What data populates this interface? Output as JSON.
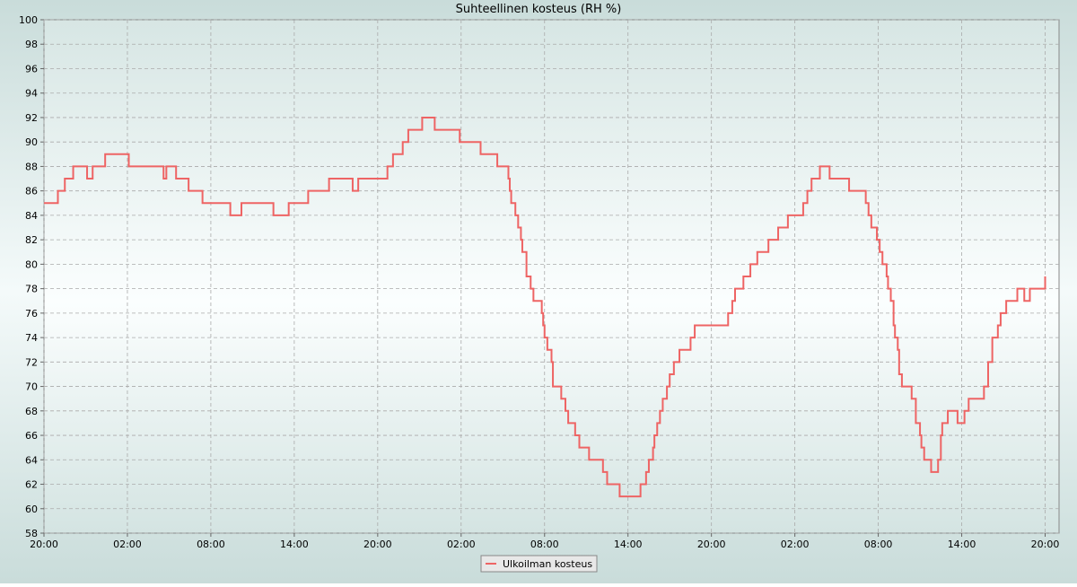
{
  "chart_data": {
    "type": "step",
    "title": "Suhteellinen kosteus (RH %)",
    "xlim": [
      0,
      73
    ],
    "ylim": [
      58,
      100
    ],
    "xticks": [
      {
        "value": 0,
        "label": "20:00"
      },
      {
        "value": 6,
        "label": "02:00"
      },
      {
        "value": 12,
        "label": "08:00"
      },
      {
        "value": 18,
        "label": "14:00"
      },
      {
        "value": 24,
        "label": "20:00"
      },
      {
        "value": 30,
        "label": "02:00"
      },
      {
        "value": 36,
        "label": "08:00"
      },
      {
        "value": 42,
        "label": "14:00"
      },
      {
        "value": 48,
        "label": "20:00"
      },
      {
        "value": 54,
        "label": "02:00"
      },
      {
        "value": 60,
        "label": "08:00"
      },
      {
        "value": 66,
        "label": "14:00"
      },
      {
        "value": 72,
        "label": "20:00"
      }
    ],
    "yticks": [
      58,
      60,
      62,
      64,
      66,
      68,
      70,
      72,
      74,
      76,
      78,
      80,
      82,
      84,
      86,
      88,
      90,
      92,
      94,
      96,
      98,
      100
    ],
    "grid": true,
    "legend": "bottom",
    "series": [
      {
        "name": "Ulkoilman kosteus",
        "color": "#ee6464",
        "x": [
          0,
          1.0,
          1.5,
          2.1,
          3.1,
          3.5,
          4.4,
          6.1,
          8.6,
          8.8,
          9.5,
          10.4,
          11.4,
          13.4,
          14.2,
          16.5,
          17.6,
          19,
          20.5,
          22.2,
          22.6,
          24.3,
          24.7,
          25.1,
          25.8,
          26.2,
          27.2,
          28.1,
          29.9,
          31.4,
          32.6,
          33.4,
          33.5,
          33.6,
          33.9,
          34.1,
          34.3,
          34.4,
          34.7,
          35.0,
          35.2,
          35.8,
          35.9,
          36.0,
          36.2,
          36.5,
          36.6,
          37.2,
          37.5,
          37.7,
          38.2,
          38.5,
          39.2,
          40.2,
          40.5,
          41.4,
          42.9,
          43.3,
          43.5,
          43.8,
          43.9,
          44.1,
          44.3,
          44.5,
          44.8,
          45.0,
          45.3,
          45.7,
          46.5,
          46.8,
          49.2,
          49.5,
          49.7,
          50.3,
          50.8,
          51.3,
          52.1,
          52.8,
          53.5,
          54.6,
          54.9,
          55.2,
          55.8,
          56.5,
          57.9,
          59.1,
          59.3,
          59.5,
          59.9,
          60.1,
          60.3,
          60.6,
          60.7,
          60.9,
          61.1,
          61.2,
          61.4,
          61.5,
          61.7,
          62.4,
          62.7,
          63.0,
          63.1,
          63.3,
          63.8,
          64.3,
          64.5,
          64.6,
          65.0,
          65.7,
          66.2,
          66.5,
          67.6,
          67.9,
          68.2,
          68.6,
          68.8,
          69.2,
          70.0,
          70.5,
          70.9,
          72
        ],
        "values": [
          85,
          86,
          87,
          88,
          87,
          88,
          89,
          88,
          87,
          88,
          87,
          86,
          85,
          84,
          85,
          84,
          85,
          86,
          87,
          86,
          87,
          87,
          88,
          89,
          90,
          91,
          92,
          91,
          90,
          89,
          88,
          87,
          86,
          85,
          84,
          83,
          82,
          81,
          79,
          78,
          77,
          76,
          75,
          74,
          73,
          72,
          70,
          69,
          68,
          67,
          66,
          65,
          64,
          63,
          62,
          61,
          62,
          63,
          64,
          65,
          66,
          67,
          68,
          69,
          70,
          71,
          72,
          73,
          74,
          75,
          76,
          77,
          78,
          79,
          80,
          81,
          82,
          83,
          84,
          85,
          86,
          87,
          88,
          87,
          86,
          85,
          84,
          83,
          82,
          81,
          80,
          79,
          78,
          77,
          75,
          74,
          73,
          71,
          70,
          69,
          67,
          66,
          65,
          64,
          63,
          64,
          66,
          67,
          68,
          67,
          68,
          69,
          70,
          72,
          74,
          75,
          76,
          77,
          78,
          77,
          78,
          79
        ]
      }
    ]
  }
}
